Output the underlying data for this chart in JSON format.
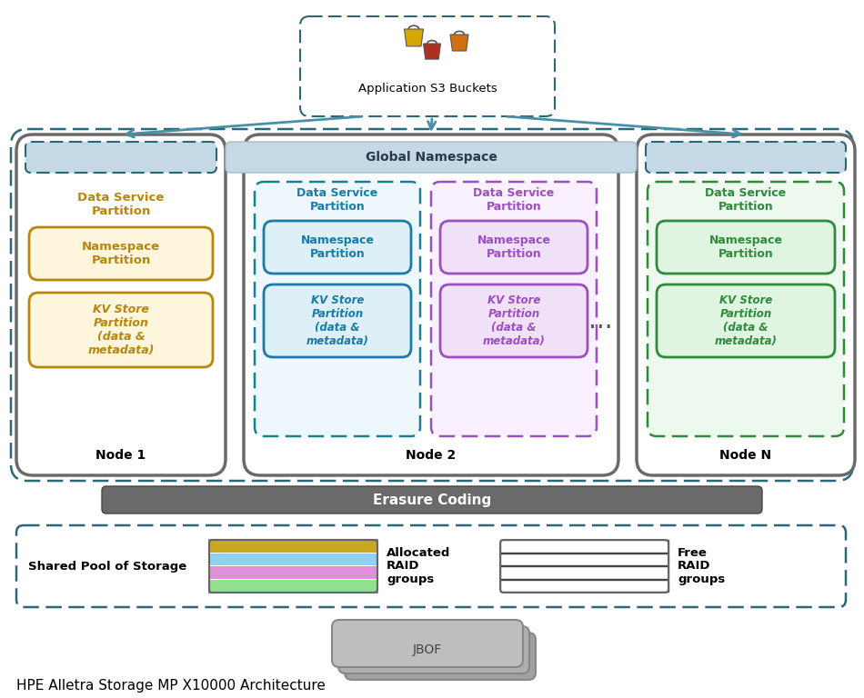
{
  "title": "HPE Alletra Storage MP X10000 Architecture",
  "bg_color": "#ffffff",
  "node1": {
    "label": "Node 1",
    "dsp_title": "Data Service\nPartition",
    "dsp_color": "#b8860b",
    "ns_label": "Namespace\nPartition",
    "ns_fill": "#fdf5dc",
    "ns_border": "#b8860b",
    "kv_label": "KV Store\nPartition\n(data &\nmetadata)",
    "kv_fill": "#fdf5dc",
    "kv_border": "#b8860b"
  },
  "node2_left": {
    "label": "Node 2",
    "dsp_title": "Data Service\nPartition",
    "dsp_color": "#1a7aaa",
    "ns_label": "Namespace\nPartition",
    "ns_fill": "#ddf0f8",
    "ns_border": "#1a7aaa",
    "kv_label": "KV Store\nPartition\n(data &\nmetadata)",
    "kv_fill": "#ddf0f8",
    "kv_border": "#1a7aaa",
    "partition_border": "#1a8090",
    "partition_fill": "#eef8fc"
  },
  "node2_right": {
    "dsp_title": "Data Service\nPartition",
    "dsp_color": "#9b4fc0",
    "ns_label": "Namespace\nPartition",
    "ns_fill": "#f0e0f8",
    "ns_border": "#9b4fc0",
    "kv_label": "KV Store\nPartition\n(data &\nmetadata)",
    "kv_fill": "#f0e0f8",
    "kv_border": "#9b4fc0",
    "partition_border": "#9b4fc0",
    "partition_fill": "#f8f0ff"
  },
  "nodeN": {
    "label": "Node N",
    "dsp_title": "Data Service\nPartition",
    "dsp_color": "#2e8b3a",
    "ns_label": "Namespace\nPartition",
    "ns_fill": "#e0f4e2",
    "ns_border": "#2e8b3a",
    "kv_label": "KV Store\nPartition\n(data &\nmetadata)",
    "kv_fill": "#e0f4e2",
    "kv_border": "#2e8b3a",
    "partition_border": "#2e8b3a",
    "partition_fill": "#edf8ee"
  },
  "global_ns_label": "Global Namespace",
  "global_ns_fill": "#c5d8e5",
  "erasure_label": "Erasure Coding",
  "erasure_fill": "#6a6a6a",
  "shared_pool_label": "Shared Pool of Storage",
  "allocated_label": "Allocated\nRAID\ngroups",
  "free_label": "Free\nRAID\ngroups",
  "jbof_label": "JBOF",
  "s3_label": "Application S3 Buckets",
  "arrow_color": "#4a8fa8",
  "dashed_color": "#2a6878",
  "node_border": "#6a6a6a",
  "stripe_colors_alloc": [
    "#c8a820",
    "#90d0f0",
    "#e090d8",
    "#90e090"
  ],
  "stripe_colors_free": [
    "#ffffff",
    "#ffffff",
    "#ffffff",
    "#ffffff"
  ]
}
